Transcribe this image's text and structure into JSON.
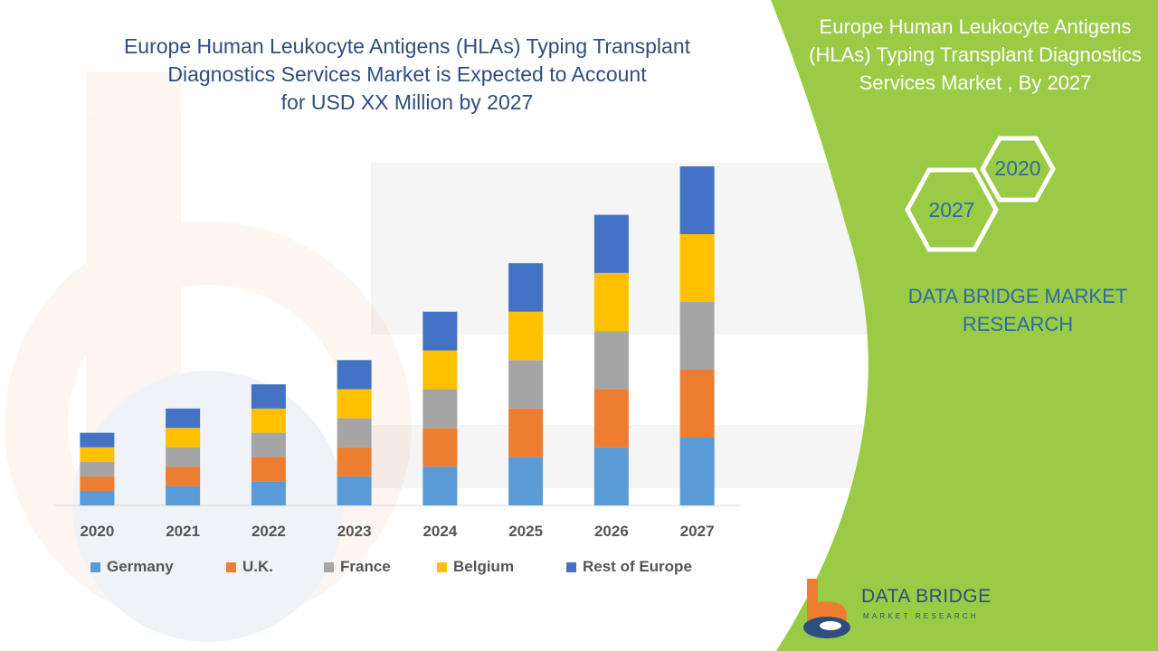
{
  "title_lines": [
    "Europe Human Leukocyte Antigens (HLAs) Typing Transplant",
    "Diagnostics Services  Market is Expected to Account",
    "for USD XX Million by 2027"
  ],
  "panel": {
    "title_lines": [
      "Europe Human Leukocyte Antigens",
      "(HLAs) Typing Transplant Diagnostics",
      "Services  Market , By 2027"
    ],
    "hex_back_label": "2020",
    "hex_front_label": "2027",
    "brand_lines": [
      "DATA BRIDGE MARKET",
      "RESEARCH"
    ],
    "logo_text": "DATA BRIDGE",
    "logo_subtext": "MARKET RESEARCH"
  },
  "colors": {
    "green_panel": "#9acb44",
    "title_text": "#2f4d7e",
    "brand_text": "#2f6aa8"
  },
  "chart_data": {
    "type": "bar",
    "stacked": true,
    "categories": [
      "2020",
      "2021",
      "2022",
      "2023",
      "2024",
      "2025",
      "2026",
      "2027"
    ],
    "series": [
      {
        "name": "Germany",
        "color": "#5b9bd5",
        "values": [
          15,
          20,
          25,
          30,
          40,
          50,
          60,
          70
        ]
      },
      {
        "name": "U.K.",
        "color": "#ed7d31",
        "values": [
          15,
          20,
          25,
          30,
          40,
          50,
          60,
          70
        ]
      },
      {
        "name": "France",
        "color": "#a5a5a5",
        "values": [
          15,
          20,
          25,
          30,
          40,
          50,
          60,
          70
        ]
      },
      {
        "name": "Belgium",
        "color": "#ffc000",
        "values": [
          15,
          20,
          25,
          30,
          40,
          50,
          60,
          70
        ]
      },
      {
        "name": "Rest of Europe",
        "color": "#4472c4",
        "values": [
          15,
          20,
          25,
          30,
          40,
          50,
          60,
          70
        ]
      }
    ],
    "ylim": [
      0,
      350
    ],
    "grid": false,
    "legend_position": "bottom"
  }
}
